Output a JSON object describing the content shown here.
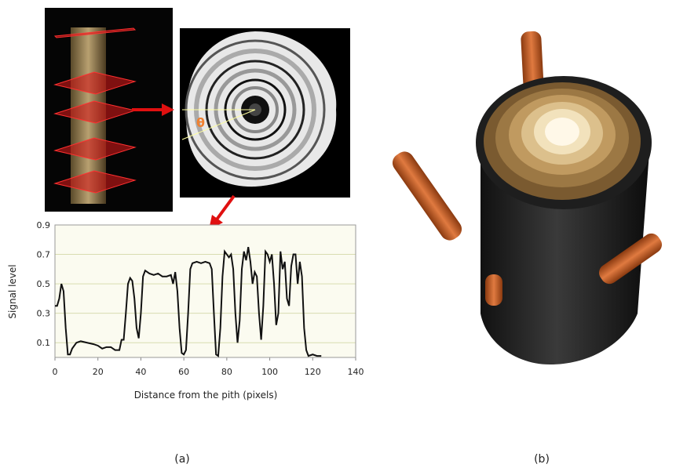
{
  "chart_data": {
    "type": "line",
    "x_label": "Distance from the pith (pixels)",
    "y_label": "Signal level",
    "x": [
      0,
      1,
      2,
      3,
      4,
      5,
      6,
      7,
      8,
      10,
      12,
      15,
      18,
      20,
      22,
      24,
      26,
      28,
      30,
      31,
      32,
      33,
      34,
      35,
      36,
      37,
      38,
      39,
      40,
      41,
      42,
      44,
      46,
      48,
      50,
      52,
      54,
      55,
      56,
      57,
      58,
      59,
      60,
      61,
      62,
      63,
      64,
      66,
      68,
      70,
      72,
      73,
      74,
      75,
      76,
      77,
      78,
      79,
      80,
      81,
      82,
      83,
      84,
      85,
      86,
      87,
      88,
      89,
      90,
      91,
      92,
      93,
      94,
      95,
      96,
      97,
      98,
      99,
      100,
      101,
      102,
      103,
      104,
      105,
      106,
      107,
      108,
      109,
      110,
      111,
      112,
      113,
      114,
      115,
      116,
      117,
      118,
      120,
      122,
      124
    ],
    "series": [
      {
        "name": "Signal level",
        "color": "#111111",
        "values": [
          0.35,
          0.35,
          0.4,
          0.5,
          0.45,
          0.2,
          0.02,
          0.02,
          0.06,
          0.1,
          0.11,
          0.1,
          0.09,
          0.08,
          0.06,
          0.07,
          0.07,
          0.05,
          0.05,
          0.12,
          0.12,
          0.3,
          0.5,
          0.54,
          0.52,
          0.4,
          0.2,
          0.13,
          0.3,
          0.55,
          0.59,
          0.57,
          0.56,
          0.57,
          0.55,
          0.55,
          0.56,
          0.5,
          0.58,
          0.45,
          0.2,
          0.03,
          0.02,
          0.05,
          0.3,
          0.6,
          0.64,
          0.65,
          0.64,
          0.65,
          0.64,
          0.6,
          0.3,
          0.02,
          0.01,
          0.2,
          0.55,
          0.72,
          0.7,
          0.68,
          0.7,
          0.6,
          0.3,
          0.1,
          0.25,
          0.6,
          0.72,
          0.66,
          0.75,
          0.65,
          0.5,
          0.58,
          0.55,
          0.3,
          0.12,
          0.35,
          0.72,
          0.7,
          0.65,
          0.7,
          0.5,
          0.22,
          0.3,
          0.72,
          0.6,
          0.65,
          0.4,
          0.35,
          0.62,
          0.7,
          0.7,
          0.5,
          0.65,
          0.55,
          0.2,
          0.05,
          0.01,
          0.02,
          0.01,
          0.01
        ]
      }
    ],
    "xlim": [
      0,
      140
    ],
    "xticks": [
      0,
      20,
      40,
      60,
      80,
      100,
      120,
      140
    ],
    "ylim": [
      0,
      0.9
    ],
    "yticks": [
      0.1,
      0.3,
      0.5,
      0.7,
      0.9
    ],
    "grid": true
  },
  "theta_label": "θ",
  "panel_a_label": "(a)",
  "panel_b_label": "(b)"
}
